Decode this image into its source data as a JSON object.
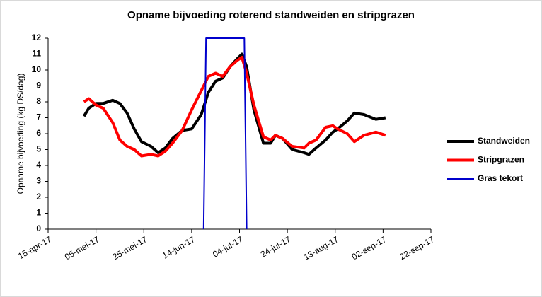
{
  "chart_data": {
    "type": "line",
    "title": "Opname bijvoeding roterend standweiden en stripgrazen",
    "y_label": "Opname bijvoeding (kg DS/dag)",
    "x": [
      "2017-04-30",
      "2017-05-02",
      "2017-05-05",
      "2017-05-08",
      "2017-05-12",
      "2017-05-15",
      "2017-05-18",
      "2017-05-21",
      "2017-05-24",
      "2017-05-28",
      "2017-05-31",
      "2017-06-03",
      "2017-06-06",
      "2017-06-10",
      "2017-06-14",
      "2017-06-18",
      "2017-06-21",
      "2017-06-24",
      "2017-06-27",
      "2017-06-30",
      "2017-07-03",
      "2017-07-05",
      "2017-07-07",
      "2017-07-10",
      "2017-07-14",
      "2017-07-17",
      "2017-07-19",
      "2017-07-22",
      "2017-07-26",
      "2017-07-31",
      "2017-08-02",
      "2017-08-05",
      "2017-08-09",
      "2017-08-12",
      "2017-08-14",
      "2017-08-18",
      "2017-08-21",
      "2017-08-25",
      "2017-08-30",
      "2017-09-03"
    ],
    "series": [
      {
        "name": "Standweiden",
        "color": "#000000",
        "width": 4,
        "values": [
          7.1,
          7.6,
          7.9,
          7.9,
          8.1,
          7.9,
          7.3,
          6.3,
          5.5,
          5.2,
          4.8,
          5.1,
          5.7,
          6.2,
          6.3,
          7.2,
          8.6,
          9.3,
          9.5,
          10.2,
          10.7,
          11.0,
          10.2,
          7.5,
          5.4,
          5.4,
          5.9,
          5.7,
          5.0,
          4.8,
          4.7,
          5.1,
          5.6,
          6.1,
          6.3,
          6.8,
          7.3,
          7.2,
          6.9,
          7.0
        ]
      },
      {
        "name": "Stripgrazen",
        "color": "#ff0000",
        "width": 4,
        "values": [
          8.0,
          8.2,
          7.8,
          7.6,
          6.7,
          5.6,
          5.2,
          5.0,
          4.6,
          4.7,
          4.6,
          4.9,
          5.4,
          6.2,
          7.5,
          8.7,
          9.6,
          9.8,
          9.6,
          10.2,
          10.6,
          10.8,
          9.8,
          7.8,
          5.8,
          5.6,
          5.9,
          5.7,
          5.2,
          5.1,
          5.4,
          5.6,
          6.4,
          6.5,
          6.3,
          6.0,
          5.5,
          5.9,
          6.1,
          5.9
        ]
      },
      {
        "name": "Gras tekort",
        "color": "#0000cc",
        "width": 2,
        "x": [
          "2017-06-19",
          "2017-06-20",
          "2017-07-06",
          "2017-07-07"
        ],
        "values": [
          0,
          12,
          12,
          0
        ]
      }
    ],
    "xlim": [
      "2017-04-15",
      "2017-09-22"
    ],
    "xticks": [
      {
        "value": "2017-04-15",
        "label": "15-apr-17"
      },
      {
        "value": "2017-05-05",
        "label": "05-mei-17"
      },
      {
        "value": "2017-05-25",
        "label": "25-mei-17"
      },
      {
        "value": "2017-06-14",
        "label": "14-jun-17"
      },
      {
        "value": "2017-07-04",
        "label": "04-jul-17"
      },
      {
        "value": "2017-07-24",
        "label": "24-jul-17"
      },
      {
        "value": "2017-08-13",
        "label": "13-aug-17"
      },
      {
        "value": "2017-09-02",
        "label": "02-sep-17"
      },
      {
        "value": "2017-09-22",
        "label": "22-sep-17"
      }
    ],
    "ylim": [
      0,
      12
    ],
    "yticks": [
      0,
      1,
      2,
      3,
      4,
      5,
      6,
      7,
      8,
      9,
      10,
      11,
      12
    ],
    "legend": "right"
  }
}
